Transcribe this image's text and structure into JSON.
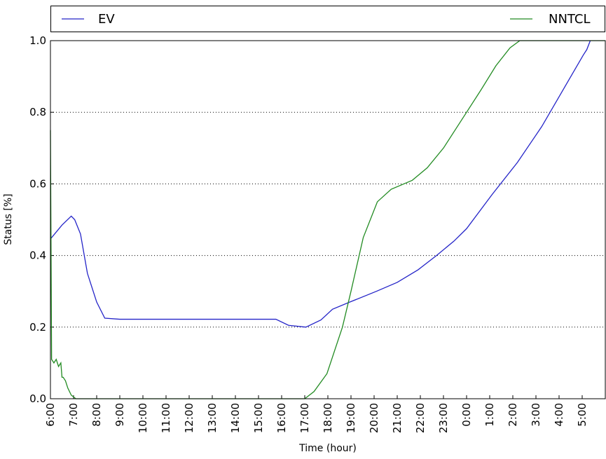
{
  "chart_data": {
    "type": "line",
    "xlabel": "Time (hour)",
    "ylabel": "Status [%]",
    "xlim": [
      0,
      24
    ],
    "ylim": [
      0,
      1
    ],
    "xticks": [
      {
        "value": 0,
        "label": "6:00"
      },
      {
        "value": 1,
        "label": "7:00"
      },
      {
        "value": 2,
        "label": "8:00"
      },
      {
        "value": 3,
        "label": "9:00"
      },
      {
        "value": 4,
        "label": "10:00"
      },
      {
        "value": 5,
        "label": "11:00"
      },
      {
        "value": 6,
        "label": "12:00"
      },
      {
        "value": 7,
        "label": "13:00"
      },
      {
        "value": 8,
        "label": "14:00"
      },
      {
        "value": 9,
        "label": "15:00"
      },
      {
        "value": 10,
        "label": "16:00"
      },
      {
        "value": 11,
        "label": "17:00"
      },
      {
        "value": 12,
        "label": "18:00"
      },
      {
        "value": 13,
        "label": "19:00"
      },
      {
        "value": 14,
        "label": "20:00"
      },
      {
        "value": 15,
        "label": "21:00"
      },
      {
        "value": 16,
        "label": "22:00"
      },
      {
        "value": 17,
        "label": "23:00"
      },
      {
        "value": 18,
        "label": "0:00"
      },
      {
        "value": 19,
        "label": "1:00"
      },
      {
        "value": 20,
        "label": "2:00"
      },
      {
        "value": 21,
        "label": "3:00"
      },
      {
        "value": 22,
        "label": "4:00"
      },
      {
        "value": 23,
        "label": "5:00"
      }
    ],
    "yticks": [
      {
        "value": 0,
        "label": "0.0"
      },
      0.2,
      0.4,
      0.6,
      0.8,
      {
        "value": 1,
        "label": "1.0"
      }
    ],
    "grid": "y",
    "legend": "top",
    "series": [
      {
        "name": "EV",
        "color": "#2424c8",
        "x": [
          0,
          0.5,
          0.9,
          1.05,
          1.3,
          1.6,
          2.0,
          2.35,
          3,
          6,
          9,
          9.75,
          10.3,
          11.05,
          11.7,
          12.2,
          12.95,
          14.1,
          15,
          15.9,
          16.7,
          17.45,
          18,
          19.1,
          20.2,
          21.25,
          22.15,
          23.05,
          23.2,
          23.35
        ],
        "values": [
          0.446,
          0.485,
          0.51,
          0.5,
          0.46,
          0.35,
          0.27,
          0.225,
          0.222,
          0.222,
          0.222,
          0.222,
          0.205,
          0.2,
          0.22,
          0.25,
          0.27,
          0.3,
          0.325,
          0.36,
          0.4,
          0.44,
          0.475,
          0.57,
          0.66,
          0.76,
          0.86,
          0.96,
          0.975,
          1.0
        ]
      },
      {
        "name": "NNTCL",
        "color": "#228b22",
        "x": [
          0,
          0.05,
          0.15,
          0.25,
          0.35,
          0.45,
          0.5,
          0.55,
          0.65,
          0.75,
          0.9,
          1.1,
          11.0,
          11.4,
          11.96,
          12.63,
          13.0,
          13.53,
          14.14,
          14.74,
          15.65,
          16.3,
          17.0,
          17.9,
          18.6,
          19.27,
          19.88,
          20.3,
          24
        ],
        "values": [
          0.75,
          0.11,
          0.1,
          0.11,
          0.09,
          0.1,
          0.06,
          0.06,
          0.05,
          0.03,
          0.01,
          0.0,
          0.0,
          0.02,
          0.07,
          0.2,
          0.3,
          0.45,
          0.55,
          0.585,
          0.61,
          0.645,
          0.7,
          0.79,
          0.86,
          0.93,
          0.98,
          1.0,
          1.0
        ]
      }
    ]
  }
}
